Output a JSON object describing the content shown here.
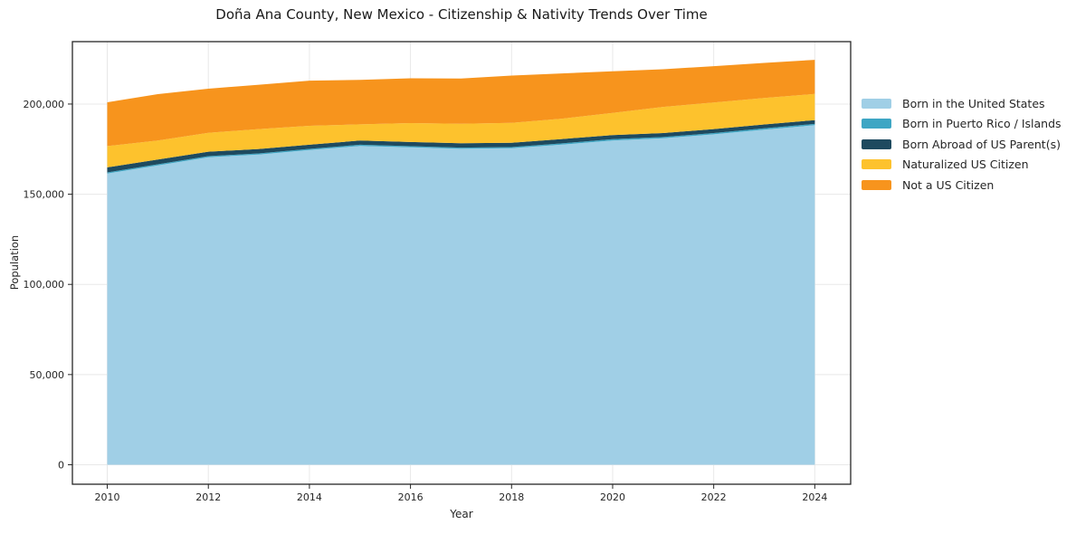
{
  "chart_data": {
    "type": "area",
    "stacked": true,
    "title": "Doña Ana County, New Mexico - Citizenship & Nativity Trends Over Time",
    "xlabel": "Year",
    "ylabel": "Population",
    "x": [
      2010,
      2011,
      2012,
      2013,
      2014,
      2015,
      2016,
      2017,
      2018,
      2019,
      2020,
      2021,
      2022,
      2023,
      2024
    ],
    "xticks": [
      2010,
      2012,
      2014,
      2016,
      2018,
      2020,
      2022,
      2024
    ],
    "yticks": [
      0,
      50000,
      100000,
      150000,
      200000
    ],
    "ytick_labels": [
      "0",
      "50,000",
      "100,000",
      "150,000",
      "200,000"
    ],
    "xlim": [
      2009.31,
      2024.71
    ],
    "ylim": [
      -10800,
      234600
    ],
    "grid": true,
    "grid_color": "#e8e8e8",
    "frame_color": "#262626",
    "legend_position": "right-outside",
    "series": [
      {
        "name": "Born in the United States",
        "color": "#a0cfe6",
        "values": [
          161500,
          166000,
          170500,
          172000,
          174500,
          176800,
          176000,
          175200,
          175500,
          177500,
          179800,
          181000,
          183200,
          185800,
          188300
        ]
      },
      {
        "name": "Born in Puerto Rico / Islands",
        "color": "#3ea6c4",
        "values": [
          600,
          600,
          600,
          600,
          650,
          650,
          650,
          650,
          650,
          700,
          700,
          700,
          700,
          700,
          700
        ]
      },
      {
        "name": "Born Abroad of US Parent(s)",
        "color": "#1e4a5f",
        "values": [
          2800,
          2600,
          2500,
          2500,
          2300,
          2300,
          2300,
          2400,
          2400,
          2400,
          2300,
          2200,
          2200,
          2200,
          2100
        ]
      },
      {
        "name": "Naturalized US Citizen",
        "color": "#fdc22d",
        "values": [
          11800,
          10600,
          10400,
          11000,
          10500,
          9000,
          10500,
          10800,
          11000,
          11300,
          12300,
          14500,
          14800,
          14700,
          14500
        ]
      },
      {
        "name": "Not a US Citizen",
        "color": "#f7941d",
        "values": [
          24300,
          25700,
          24500,
          24600,
          25000,
          24650,
          24850,
          25150,
          26250,
          25100,
          23100,
          20900,
          20100,
          19400,
          18900
        ]
      }
    ]
  }
}
